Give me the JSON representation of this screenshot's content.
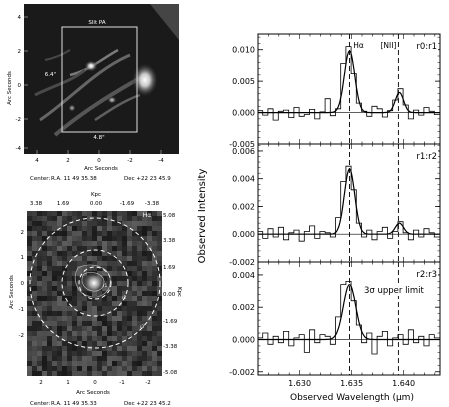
{
  "top_image": {
    "slit_label": "Slit PA",
    "width_label": "6.4\"",
    "height_label": "4.8\"",
    "y_label": "Arc Seconds",
    "x_label": "Arc Seconds",
    "y_ticks": [
      "4",
      "2",
      "0",
      "-2",
      "-4"
    ],
    "x_ticks": [
      "4",
      "2",
      "0",
      "-2",
      "-4"
    ],
    "center_label": "Center:",
    "ra_label": "R.A. 11 49 35.38",
    "dec_label": "Dec  +22 23 45.9"
  },
  "bottom_image": {
    "top_label": "Kpc",
    "top_ticks": [
      "3.38",
      "1.69",
      "0.00",
      "-1.69",
      "-3.38"
    ],
    "right_label": "Kpc",
    "right_ticks": [
      "5.08",
      "3.38",
      "1.69",
      "0.00",
      "-1.69",
      "-3.38",
      "-5.08"
    ],
    "panel_label": "Hα",
    "ring_labels": [
      "r1",
      "r2",
      "r3"
    ],
    "y_label": "Arc Seconds",
    "x_label": "Arc Seconds",
    "y_ticks": [
      "2",
      "1",
      "0",
      "-1",
      "-2"
    ],
    "x_ticks": [
      "2",
      "1",
      "0",
      "-1",
      "-2"
    ],
    "center_label": "Center:",
    "ra_label": "R.A. 11 49 35.33",
    "dec_label": "Dec  +22 23 45.2"
  },
  "chart_data": {
    "type": "line",
    "xlabel": "Observed Wavelength (μm)",
    "ylabel": "Observed Intensity",
    "xlim": [
      1.626,
      1.6435
    ],
    "x_ticks": [
      1.63,
      1.635,
      1.64
    ],
    "x_tick_labels": [
      "1.630",
      "1.635",
      "1.640"
    ],
    "line_markers": [
      {
        "label": "Hα",
        "x": 1.6348
      },
      {
        "label": "[NII]",
        "x": 1.6395
      }
    ],
    "panels": [
      {
        "label": "r0:r1",
        "ylim": [
          -0.005,
          0.0125
        ],
        "y_ticks": [
          -0.005,
          0.0,
          0.005,
          0.01
        ],
        "y_tick_labels": [
          "-0.005",
          "0.000",
          "0.005",
          "0.010"
        ],
        "annotation": "",
        "data_x": [
          1.6262,
          1.6267,
          1.6272,
          1.6277,
          1.6282,
          1.6287,
          1.6292,
          1.6297,
          1.6302,
          1.6307,
          1.6312,
          1.6317,
          1.6322,
          1.6327,
          1.6332,
          1.6337,
          1.6342,
          1.6347,
          1.6352,
          1.6357,
          1.6362,
          1.6367,
          1.6372,
          1.6377,
          1.6382,
          1.6387,
          1.6392,
          1.6397,
          1.6402,
          1.6407,
          1.6412,
          1.6417,
          1.6422,
          1.6427,
          1.6432
        ],
        "data_y": [
          0.0003,
          -0.0004,
          0.0006,
          -0.0012,
          0.0002,
          0.0004,
          -0.0008,
          0.0008,
          -0.0006,
          -0.0003,
          0.0005,
          -0.001,
          0.0001,
          0.0022,
          -0.0005,
          0.0006,
          0.0078,
          0.0105,
          0.0062,
          0.0015,
          0.0002,
          -0.0006,
          0.001,
          0.0006,
          -0.0007,
          0.0003,
          0.002,
          0.0038,
          0.0012,
          -0.001,
          0.0004,
          -0.0004,
          0.0008,
          0.0002,
          -0.0003
        ],
        "fit": {
          "baseline": 0.0,
          "peaks": [
            {
              "center": 1.6348,
              "amp": 0.0098,
              "sigma": 0.0005
            },
            {
              "center": 1.6396,
              "amp": 0.0032,
              "sigma": 0.0004
            }
          ]
        }
      },
      {
        "label": "r1:r2",
        "ylim": [
          -0.002,
          0.0065
        ],
        "y_ticks": [
          -0.002,
          0.0,
          0.002,
          0.004,
          0.006
        ],
        "y_tick_labels": [
          "-0.002",
          "0.000",
          "0.002",
          "0.004",
          "0.006"
        ],
        "annotation": "",
        "data_x": [
          1.6262,
          1.6267,
          1.6272,
          1.6277,
          1.6282,
          1.6287,
          1.6292,
          1.6297,
          1.6302,
          1.6307,
          1.6312,
          1.6317,
          1.6322,
          1.6327,
          1.6332,
          1.6337,
          1.6342,
          1.6347,
          1.6352,
          1.6357,
          1.6362,
          1.6367,
          1.6372,
          1.6377,
          1.6382,
          1.6387,
          1.6392,
          1.6397,
          1.6402,
          1.6407,
          1.6412,
          1.6417,
          1.6422,
          1.6427,
          1.6432
        ],
        "data_y": [
          0.0002,
          -0.0003,
          0.0004,
          -0.0002,
          0.0005,
          -0.0004,
          0.0001,
          0.0003,
          -0.0005,
          0.0002,
          0.0006,
          -0.0003,
          0.0002,
          0.0001,
          -0.0002,
          0.0012,
          0.0038,
          0.0049,
          0.0032,
          0.0008,
          -0.0002,
          0.0003,
          -0.0004,
          0.0002,
          0.0005,
          -0.0003,
          0.0002,
          0.0009,
          0.0001,
          -0.0004,
          0.0003,
          -0.0002,
          0.0004,
          0.0001,
          -0.0002
        ],
        "fit": {
          "baseline": 0.0,
          "peaks": [
            {
              "center": 1.6348,
              "amp": 0.0047,
              "sigma": 0.0005
            },
            {
              "center": 1.6396,
              "amp": 0.0008,
              "sigma": 0.0004
            }
          ]
        }
      },
      {
        "label": "r2:r3",
        "ylim": [
          -0.0022,
          0.0048
        ],
        "y_ticks": [
          -0.002,
          0.0,
          0.002,
          0.004
        ],
        "y_tick_labels": [
          "-0.002",
          "0.000",
          "0.002",
          "0.004"
        ],
        "annotation": "3σ upper limit",
        "data_x": [
          1.6262,
          1.6267,
          1.6272,
          1.6277,
          1.6282,
          1.6287,
          1.6292,
          1.6297,
          1.6302,
          1.6307,
          1.6312,
          1.6317,
          1.6322,
          1.6327,
          1.6332,
          1.6337,
          1.6342,
          1.6347,
          1.6352,
          1.6357,
          1.6362,
          1.6367,
          1.6372,
          1.6377,
          1.6382,
          1.6387,
          1.6392,
          1.6397,
          1.6402,
          1.6407,
          1.6412,
          1.6417,
          1.6422,
          1.6427,
          1.6432
        ],
        "data_y": [
          0.0001,
          0.0004,
          -0.0003,
          0.0002,
          -0.0002,
          0.0005,
          -0.0004,
          0.0001,
          0.0003,
          -0.0008,
          0.0006,
          -0.0002,
          0.0003,
          0.0002,
          -0.0003,
          0.0014,
          0.0034,
          0.0036,
          0.0024,
          0.0009,
          -0.0002,
          0.0004,
          -0.0009,
          0.0002,
          0.0005,
          -0.0004,
          0.0001,
          0.0003,
          -0.0003,
          0.0006,
          -0.0002,
          0.0002,
          -0.0004,
          0.0003,
          0.0001
        ],
        "fit": {
          "baseline": 0.0,
          "peaks": [
            {
              "center": 1.6348,
              "amp": 0.0034,
              "sigma": 0.0006
            }
          ]
        }
      }
    ]
  }
}
